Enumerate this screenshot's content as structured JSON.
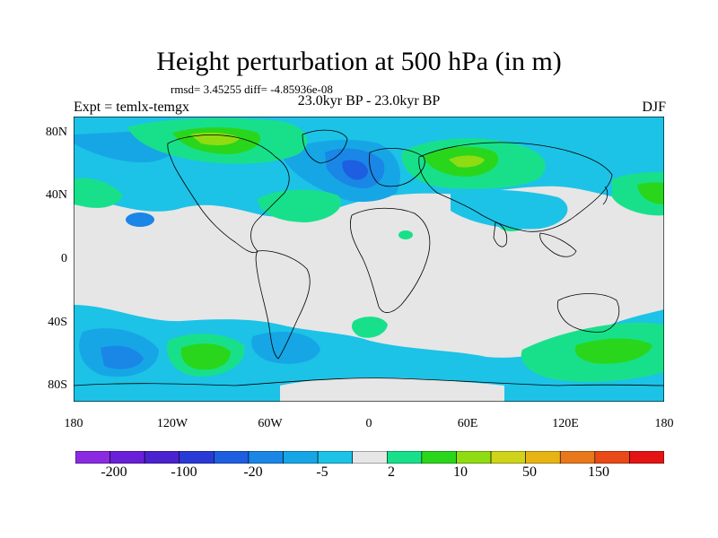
{
  "title": "Height perturbation at 500 hPa (in m)",
  "stats": "rmsd= 3.45255 diff= -4.85936e-08",
  "period": "23.0kyr BP - 23.0kyr BP",
  "experiment": "Expt = temlx-temgx",
  "season": "DJF",
  "lat_labels": [
    "80N",
    "40N",
    "0",
    "40S",
    "80S"
  ],
  "lon_labels": [
    "180",
    "120W",
    "60W",
    "0",
    "60E",
    "120E",
    "180"
  ],
  "colorbar": {
    "colors": [
      "#8a2be2",
      "#6a1fd8",
      "#4b22cf",
      "#2a3ad6",
      "#1e5ee0",
      "#1a86e6",
      "#16a6e6",
      "#1cc3e6",
      "#e6e6e6",
      "#18e08a",
      "#2ad61c",
      "#8fdc12",
      "#cfd41a",
      "#e8b414",
      "#e8781a",
      "#e84a18",
      "#e41414"
    ],
    "labels": [
      "-200",
      "-100",
      "-20",
      "-5",
      "2",
      "10",
      "50",
      "150"
    ]
  },
  "chart_data": {
    "type": "map",
    "variable": "500 hPa height perturbation",
    "units": "m",
    "projection": "cylindrical equidistant",
    "lon_range": [
      -180,
      180
    ],
    "lat_range": [
      -90,
      90
    ],
    "contour_levels": [
      -200,
      -150,
      -100,
      -50,
      -20,
      -10,
      -5,
      -2,
      2,
      5,
      10,
      20,
      50,
      100,
      150,
      200
    ],
    "features": [
      {
        "region": "North Atlantic",
        "sign": "negative",
        "level": "-20 to -10"
      },
      {
        "region": "Canadian Arctic / Greenland",
        "sign": "positive",
        "level": "5 to 10"
      },
      {
        "region": "Europe / Western Asia",
        "sign": "positive",
        "level": "5 to 10"
      },
      {
        "region": "North Pacific",
        "sign": "positive",
        "level": "5"
      },
      {
        "region": "Southern Pacific",
        "sign": "positive",
        "level": "5 to 10"
      },
      {
        "region": "Southern Indian Ocean / Tasman",
        "sign": "positive",
        "level": "2 to 10"
      },
      {
        "region": "Southern Ocean near 140W",
        "sign": "negative",
        "level": "-5 to -10"
      }
    ]
  }
}
